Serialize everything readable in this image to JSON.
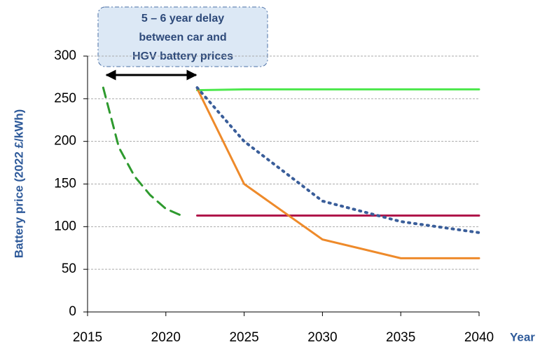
{
  "chart_data": {
    "type": "line",
    "ylabel": "Battery price (2022 £/kWh)",
    "xlabel": "Year",
    "annotation": [
      "5 – 6 year delay",
      "between car and",
      "HGV battery prices"
    ],
    "xlim": [
      2015,
      2040
    ],
    "xticks": [
      2015,
      2020,
      2025,
      2030,
      2035,
      2040
    ],
    "ylim": [
      0,
      300
    ],
    "yticks": [
      0,
      50,
      100,
      150,
      200,
      250,
      300
    ],
    "grid": true,
    "series": [
      {
        "color": "#2e9a2e",
        "style": "dashed",
        "x": [
          2016,
          2017,
          2018,
          2019,
          2020,
          2021
        ],
        "values": [
          263,
          193,
          159,
          137,
          121,
          113
        ]
      },
      {
        "color": "#4ee84e",
        "style": "solid",
        "x": [
          2022,
          2025,
          2040
        ],
        "values": [
          260,
          261,
          261
        ]
      },
      {
        "color": "#b0144a",
        "style": "solid",
        "x": [
          2022,
          2040
        ],
        "values": [
          113,
          113
        ]
      },
      {
        "color": "#ee8a2a",
        "style": "solid",
        "x": [
          2022,
          2025,
          2030,
          2035,
          2040
        ],
        "values": [
          262,
          150,
          85,
          63,
          63
        ]
      },
      {
        "color": "#3a5e9a",
        "style": "dotted",
        "x": [
          2022,
          2025,
          2030,
          2035,
          2040
        ],
        "values": [
          263,
          200,
          130,
          106,
          93
        ]
      }
    ]
  }
}
